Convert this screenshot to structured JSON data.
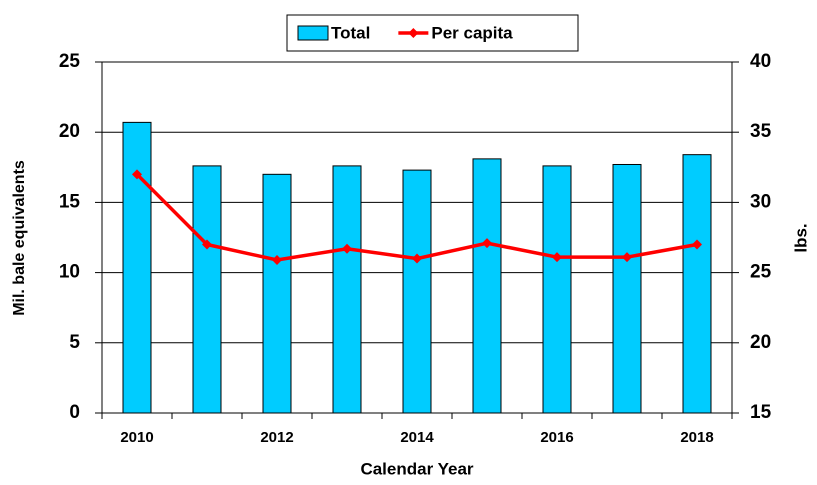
{
  "chart_data": {
    "type": "bar",
    "categories": [
      "2010",
      null,
      "2012",
      null,
      "2014",
      null,
      "2016",
      null,
      "2018"
    ],
    "series": [
      {
        "name": "Total",
        "type": "bar",
        "color": "#00ccff",
        "values": [
          20.7,
          17.6,
          17.0,
          17.6,
          17.3,
          18.1,
          17.6,
          17.7,
          18.4
        ]
      },
      {
        "name": "Per capita",
        "type": "line",
        "axis": "y2",
        "color": "#ff0000",
        "values": [
          32.0,
          27.0,
          25.9,
          26.7,
          26.0,
          27.1,
          26.1,
          26.1,
          27.0
        ]
      }
    ],
    "xlabel": "Calendar Year",
    "ylabel": "Mil. bale equivalents",
    "y2label": "lbs.",
    "ylim": [
      0,
      25
    ],
    "yticks": [
      0,
      5,
      10,
      15,
      20,
      25
    ],
    "y2lim": [
      15,
      40
    ],
    "y2ticks": [
      15,
      20,
      25,
      30,
      35,
      40
    ],
    "grid": true,
    "legend": "top"
  }
}
